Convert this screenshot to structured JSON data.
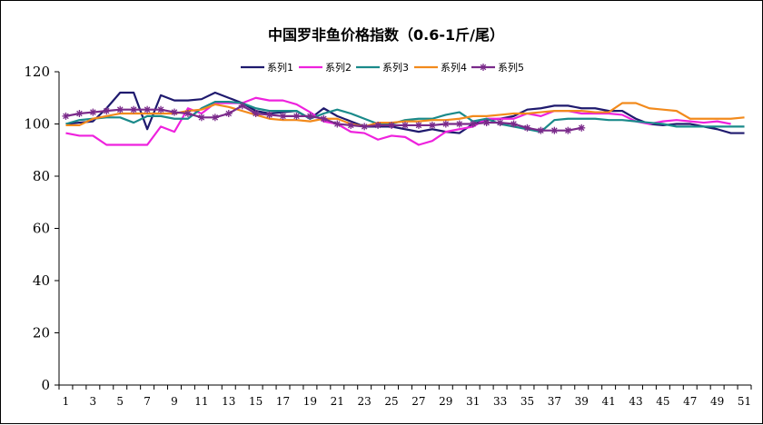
{
  "chart_data": {
    "type": "line",
    "title": "中国罗非鱼价格指数（0.6-1斤/尾）",
    "xlabel": "",
    "ylabel": "",
    "ylim": [
      0,
      120
    ],
    "yticks": [
      0,
      20,
      40,
      60,
      80,
      100,
      120
    ],
    "x": [
      1,
      2,
      3,
      4,
      5,
      6,
      7,
      8,
      9,
      10,
      11,
      12,
      13,
      14,
      15,
      16,
      17,
      18,
      19,
      20,
      21,
      22,
      23,
      24,
      25,
      26,
      27,
      28,
      29,
      30,
      31,
      32,
      33,
      34,
      35,
      36,
      37,
      38,
      39,
      40,
      41,
      42,
      43,
      44,
      45,
      46,
      47,
      48,
      49,
      50,
      51
    ],
    "xtick_labels": [
      "1",
      "3",
      "5",
      "7",
      "9",
      "11",
      "13",
      "15",
      "17",
      "19",
      "21",
      "23",
      "25",
      "27",
      "29",
      "31",
      "33",
      "35",
      "37",
      "39",
      "41",
      "43",
      "45",
      "47",
      "49",
      "51"
    ],
    "grid": false,
    "legend_position": "top",
    "series": [
      {
        "name": "系列1",
        "color": "#1f1a6e",
        "marker": "none",
        "values": [
          100,
          100.5,
          101,
          106,
          112,
          112,
          98,
          111,
          109,
          109,
          109.5,
          112,
          110,
          108,
          105,
          104,
          104.5,
          105,
          102,
          106,
          103,
          101,
          99,
          99,
          99,
          98,
          97,
          98,
          97,
          96.5,
          100,
          101.5,
          102,
          103,
          105.5,
          106,
          107,
          107,
          106,
          106,
          105,
          105,
          102,
          100,
          99.5,
          100,
          100,
          99,
          98,
          96.5,
          96.5
        ]
      },
      {
        "name": "系列2",
        "color": "#ee22dd",
        "marker": "none",
        "values": [
          96.5,
          95.5,
          95.5,
          92,
          92,
          92,
          92,
          99,
          97,
          106,
          104,
          108,
          108,
          108,
          110,
          109,
          109,
          107.5,
          104.5,
          101,
          100,
          97,
          96.5,
          94,
          95.5,
          95,
          92,
          93.5,
          97,
          98,
          99,
          102,
          102,
          102,
          104,
          103,
          105,
          105,
          104,
          104,
          104,
          103.5,
          101,
          100,
          101,
          101.5,
          101,
          100.5,
          101,
          100,
          null
        ]
      },
      {
        "name": "系列3",
        "color": "#1a8a8a",
        "marker": "none",
        "values": [
          100,
          101.5,
          102,
          102.5,
          102.5,
          100.5,
          103,
          103,
          102,
          102,
          106,
          108.5,
          108.5,
          108,
          106,
          105,
          105,
          105,
          102,
          104,
          105.5,
          104,
          102,
          100,
          100,
          101.5,
          102,
          102,
          103.5,
          104.5,
          101,
          102,
          100,
          99,
          98,
          97,
          101.5,
          102,
          102,
          102,
          101.5,
          101.5,
          101,
          100.5,
          100,
          99,
          99,
          99,
          99,
          99,
          99
        ]
      },
      {
        "name": "系列4",
        "color": "#f28a1c",
        "marker": "none",
        "values": [
          99.5,
          99.5,
          102,
          103,
          104,
          104,
          104,
          104,
          104,
          105,
          105.5,
          107.5,
          106.5,
          105,
          103.5,
          102,
          101.5,
          101.5,
          101,
          102,
          102,
          100,
          99,
          100.5,
          100.5,
          101,
          101,
          101.5,
          101.5,
          102,
          103,
          103,
          103.5,
          104,
          104,
          104.5,
          105,
          105,
          105,
          104.5,
          104.5,
          108,
          108,
          106,
          105.5,
          105,
          102,
          102,
          102,
          102,
          102.5
        ]
      },
      {
        "name": "系列5",
        "color": "#7a2a8a",
        "marker": "star",
        "values": [
          103,
          104,
          104.5,
          105,
          105.5,
          105.5,
          105.5,
          105.5,
          104.5,
          104,
          102.5,
          102.5,
          104,
          107,
          104,
          103.5,
          103,
          103,
          103,
          102,
          100,
          99.5,
          99,
          99.5,
          99.5,
          99.5,
          99.5,
          99.5,
          100,
          100,
          100,
          100.5,
          100.5,
          100,
          98.5,
          97.5,
          97.5,
          97.5,
          98.5,
          null,
          null,
          null,
          null,
          null,
          null,
          null,
          null,
          null,
          null,
          null,
          null
        ]
      }
    ]
  }
}
